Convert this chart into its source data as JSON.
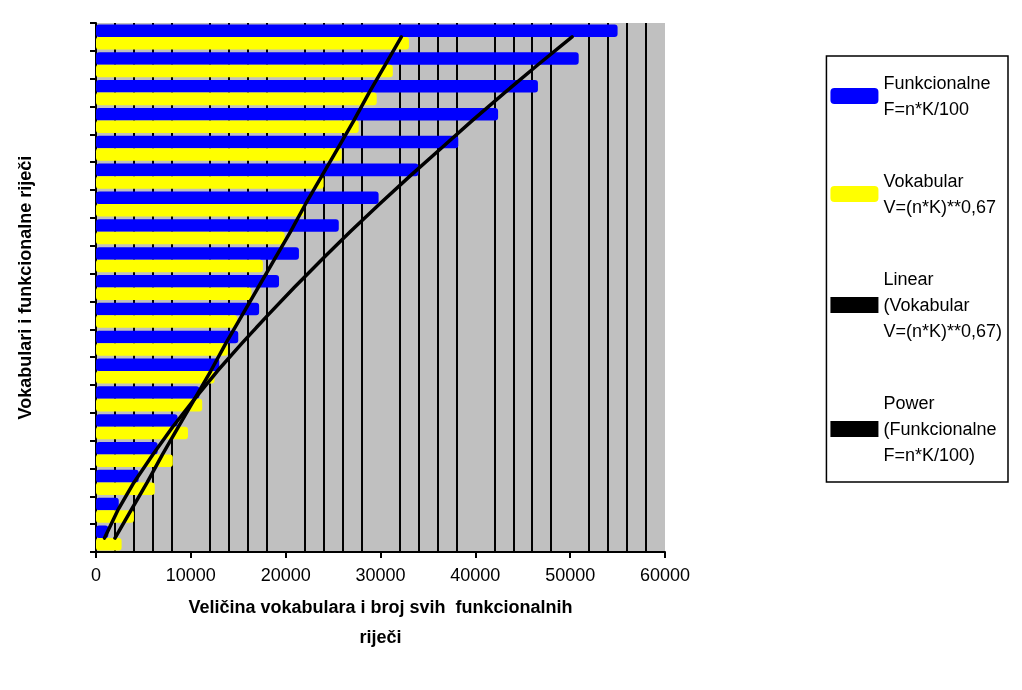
{
  "chart_data": {
    "type": "bar",
    "orientation": "horizontal",
    "xlabel": "Veličina vokabulara i broj svih  funkcionalnih\nriječi",
    "ylabel": "Vokabulari i funkcionalne riječi",
    "categories": [
      null,
      null,
      null,
      null,
      null,
      null,
      null,
      null,
      null,
      null,
      null,
      null,
      null,
      null,
      null,
      null,
      null,
      null,
      null
    ],
    "series": [
      {
        "name": "Funkcionalne\nF=n*K/100",
        "color": "#0000ff",
        "values": [
          55000,
          50900,
          46600,
          42400,
          38200,
          34000,
          29800,
          25600,
          21400,
          19300,
          17200,
          15000,
          13000,
          10900,
          8600,
          6500,
          4500,
          2400,
          1300
        ]
      },
      {
        "name": "Vokabular\nV=(n*K)**0,67",
        "color": "#ffff00",
        "values": [
          33000,
          31300,
          29600,
          27700,
          25900,
          24000,
          21900,
          19900,
          17600,
          16400,
          14900,
          13900,
          12500,
          11200,
          9700,
          8100,
          6200,
          4000,
          2700
        ]
      },
      {
        "name": "Linear\n(Vokabular\nV=(n*K)**0,67)",
        "type": "line",
        "color": "#000000",
        "values": [
          32200,
          30500,
          28800,
          27200,
          25500,
          23800,
          22100,
          20500,
          18800,
          17100,
          15400,
          13700,
          12100,
          10400,
          8700,
          7000,
          5400,
          3700,
          2000
        ]
      },
      {
        "name": "Power\n(Funkcionalne\nF=n*K/100)",
        "type": "line",
        "color": "#000000",
        "values": [
          50200,
          46600,
          43100,
          39700,
          36400,
          33100,
          29900,
          26800,
          23800,
          20900,
          18100,
          15400,
          12800,
          10400,
          8100,
          6000,
          4000,
          2300,
          900
        ]
      }
    ],
    "xlim": [
      0,
      60000
    ],
    "xticks": [
      0,
      10000,
      20000,
      30000,
      40000,
      50000,
      60000
    ],
    "grid": "x",
    "legend": "right",
    "marker": "none",
    "line_style": "solid"
  }
}
